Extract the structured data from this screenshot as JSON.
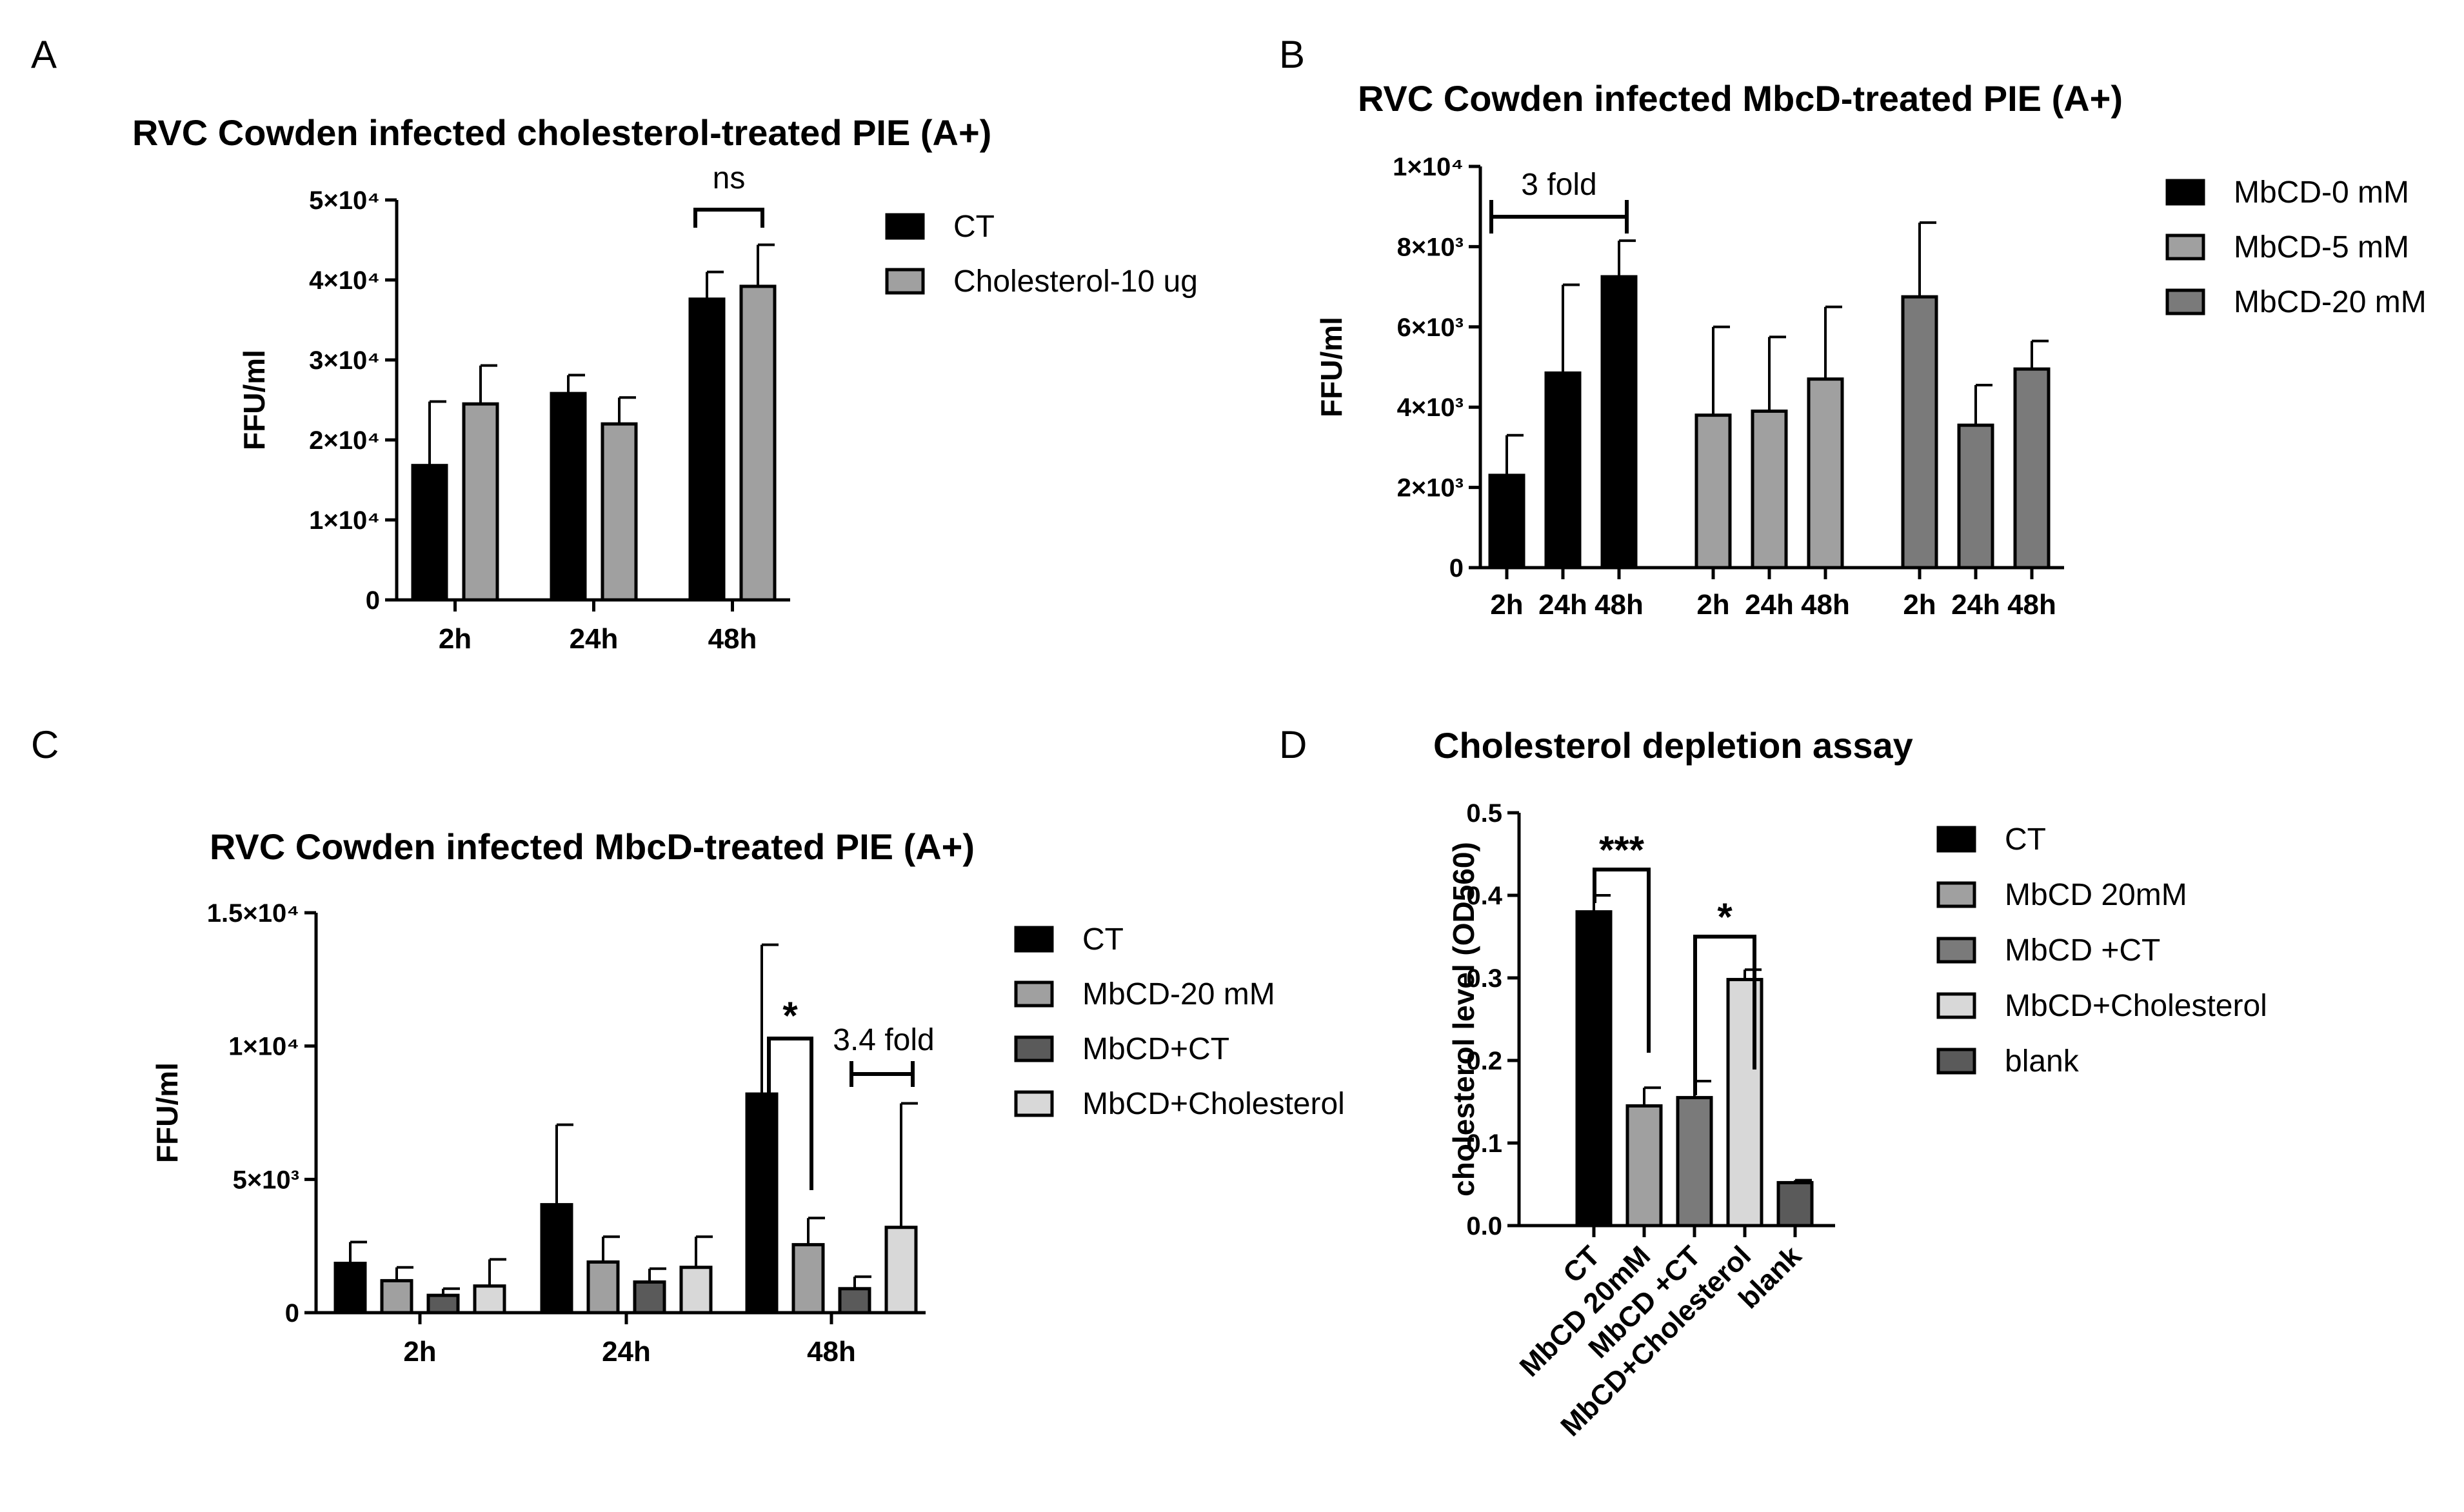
{
  "chart_data": [
    {
      "panel": "A",
      "type": "bar",
      "title": "RVC Cowden infected cholesterol-treated PIE (A+)",
      "xlabel": "",
      "ylabel": "FFU/ml",
      "ylim": [
        0,
        50000
      ],
      "yticks": [
        {
          "value": 0,
          "label": "0"
        },
        {
          "value": 10000,
          "label": "1×10⁴"
        },
        {
          "value": 20000,
          "label": "2×10⁴"
        },
        {
          "value": 30000,
          "label": "3×10⁴"
        },
        {
          "value": 40000,
          "label": "4×10⁴"
        },
        {
          "value": 50000,
          "label": "5×10⁴"
        }
      ],
      "categories": [
        "2h",
        "24h",
        "48h"
      ],
      "series": [
        {
          "name": "CT",
          "color": "#000000",
          "values": [
            16800,
            25800,
            37600
          ],
          "errors": [
            8000,
            2300,
            3400
          ]
        },
        {
          "name": "Cholesterol-10 ug",
          "color": "#a0a0a0",
          "values": [
            24500,
            22000,
            39200
          ],
          "errors": [
            4800,
            3300,
            5200
          ]
        }
      ],
      "annotations": [
        {
          "text": "ns",
          "category": 2
        }
      ],
      "legend": "right"
    },
    {
      "panel": "B",
      "type": "bar",
      "title": "RVC Cowden infected MbcD-treated PIE (A+)",
      "xlabel": "",
      "ylabel": "FFU/ml",
      "ylim": [
        0,
        10000
      ],
      "yticks": [
        {
          "value": 0,
          "label": "0"
        },
        {
          "value": 2000,
          "label": "2×10³"
        },
        {
          "value": 4000,
          "label": "4×10³"
        },
        {
          "value": 6000,
          "label": "6×10³"
        },
        {
          "value": 8000,
          "label": "8×10³"
        },
        {
          "value": 10000,
          "label": "1×10⁴"
        }
      ],
      "categories": [
        "2h",
        "24h",
        "48h"
      ],
      "series": [
        {
          "name": "MbCD-0 mM",
          "color": "#000000",
          "values": [
            2300,
            4850,
            7250
          ],
          "errors": [
            1000,
            2200,
            900
          ]
        },
        {
          "name": "MbCD-5 mM",
          "color": "#a0a0a0",
          "values": [
            3800,
            3900,
            4700
          ],
          "errors": [
            2200,
            1850,
            1800
          ]
        },
        {
          "name": "MbCD-20 mM",
          "color": "#7a7a7a",
          "values": [
            6750,
            3550,
            4950
          ],
          "errors": [
            1850,
            1000,
            700
          ]
        }
      ],
      "annotations": [
        {
          "text": "3 fold"
        }
      ],
      "legend": "right"
    },
    {
      "panel": "C",
      "type": "bar",
      "title": "RVC Cowden infected MbcD-treated PIE (A+)",
      "xlabel": "",
      "ylabel": "FFU/ml",
      "ylim": [
        0,
        15000
      ],
      "yticks": [
        {
          "value": 0,
          "label": "0"
        },
        {
          "value": 5000,
          "label": "5×10³"
        },
        {
          "value": 10000,
          "label": "1×10⁴"
        },
        {
          "value": 15000,
          "label": "1.5×10⁴"
        }
      ],
      "categories": [
        "2h",
        "24h",
        "48h"
      ],
      "series": [
        {
          "name": "CT",
          "color": "#000000",
          "values": [
            1850,
            4050,
            8200
          ],
          "errors": [
            800,
            3000,
            5600
          ]
        },
        {
          "name": "MbCD-20 mM",
          "color": "#a0a0a0",
          "values": [
            1200,
            1900,
            2550
          ],
          "errors": [
            500,
            950,
            1000
          ]
        },
        {
          "name": "MbCD+CT",
          "color": "#5a5a5a",
          "values": [
            650,
            1150,
            900
          ],
          "errors": [
            250,
            500,
            450
          ]
        },
        {
          "name": "MbCD+Cholesterol",
          "color": "#d8d8d8",
          "values": [
            1000,
            1700,
            3200
          ],
          "errors": [
            1000,
            1150,
            4650
          ]
        }
      ],
      "annotations": [
        {
          "text": "*"
        },
        {
          "text": "3.4 fold"
        }
      ],
      "legend": "right"
    },
    {
      "panel": "D",
      "type": "bar",
      "title": "Cholesterol depletion assay",
      "xlabel": "",
      "ylabel": "cholesterol level (OD560)",
      "ylim": [
        0,
        0.5
      ],
      "yticks": [
        {
          "value": 0,
          "label": "0.0"
        },
        {
          "value": 0.1,
          "label": "0.1"
        },
        {
          "value": 0.2,
          "label": "0.2"
        },
        {
          "value": 0.3,
          "label": "0.3"
        },
        {
          "value": 0.4,
          "label": "0.4"
        },
        {
          "value": 0.5,
          "label": "0.5"
        }
      ],
      "categories": [
        "CT",
        "MbCD 20mM",
        "MbCD +CT",
        "MbCD+Cholesterol",
        "blank"
      ],
      "values": [
        0.38,
        0.145,
        0.155,
        0.298,
        0.052
      ],
      "errors": [
        0.02,
        0.022,
        0.02,
        0.012,
        0.003
      ],
      "colors": [
        "#000000",
        "#a0a0a0",
        "#7a7a7a",
        "#d8d8d8",
        "#5a5a5a"
      ],
      "annotations": [
        {
          "text": "***"
        },
        {
          "text": "*"
        }
      ],
      "legend": "right"
    }
  ],
  "panel_labels": [
    "A",
    "B",
    "C",
    "D"
  ]
}
